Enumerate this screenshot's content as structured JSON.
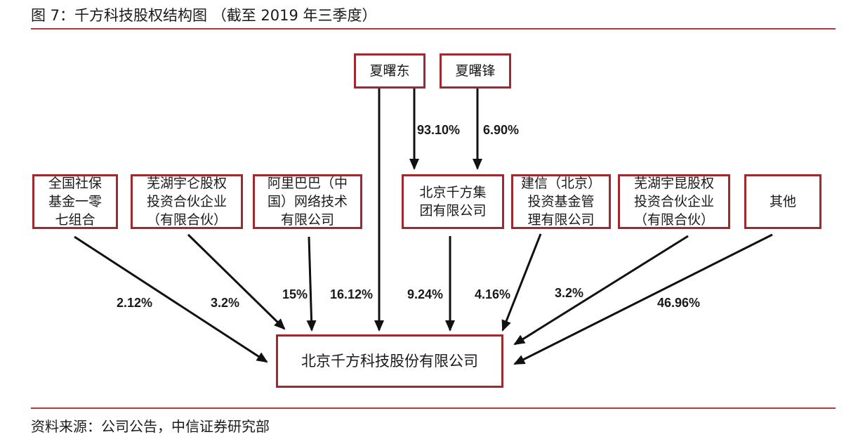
{
  "figure": {
    "title": "图 7：千方科技股权结构图 （截至 2019 年三季度）",
    "source": "资料来源：公司公告，中信证券研究部"
  },
  "top_holders": [
    {
      "id": "xia-shudong",
      "name": "夏曙东"
    },
    {
      "id": "xia-shufeng",
      "name": "夏曙锋"
    }
  ],
  "top_edges": [
    {
      "from": "夏曙东",
      "to": "北京千方集团有限公司",
      "pct": "93.10%"
    },
    {
      "from": "夏曙锋",
      "to": "北京千方集团有限公司",
      "pct": "6.90%"
    }
  ],
  "shareholders": [
    {
      "name": "全国社保\n基金一零\n七组合",
      "pct": "2.12%"
    },
    {
      "name": "芜湖宇仑股权\n投资合伙企业\n（有限合伙）",
      "pct": "3.2%"
    },
    {
      "name": "阿里巴巴（中\n国）网络技术\n有限公司",
      "pct": "15%"
    },
    {
      "name": "夏曙东",
      "pct": "16.12%"
    },
    {
      "name": "北京千方集\n团有限公司",
      "pct": "9.24%"
    },
    {
      "name": "建信（北京）\n投资基金管\n理有限公司",
      "pct": "4.16%"
    },
    {
      "name": "芜湖宇昆股权\n投资合伙企业\n（有限合伙）",
      "pct": "3.2%"
    },
    {
      "name": "其他",
      "pct": "46.96%"
    }
  ],
  "target": {
    "name": "北京千方科技股份有限公司"
  },
  "colors": {
    "box_border": "#9e2a2f",
    "rule": "#b33a3a",
    "arrow": "#111111"
  }
}
